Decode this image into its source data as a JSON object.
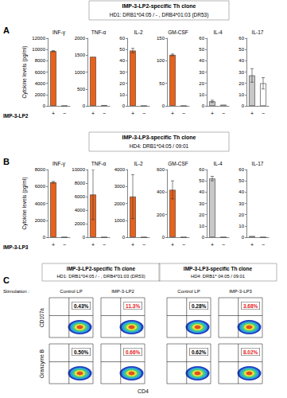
{
  "panels": [
    {
      "label": "A",
      "title": "IMP-3-LP2-specific Th clone",
      "subtitle": "HD1: DRB1*04:05 / - , DRB4*01:03 (DR53)",
      "y_label": "Cytokine levels (pg/ml)",
      "x_label": "IMP-3-LP2"
    },
    {
      "label": "B",
      "title": "IMP-3-LP3-specific Th clone",
      "subtitle": "HD4: DRB1*04:05 / 09:01",
      "y_label": "Cytokine levels (pg/ml)",
      "x_label": "IMP-3-LP3"
    }
  ],
  "chart_data": [
    {
      "type": "bar",
      "title": "INF-γ",
      "categories": [
        "+",
        "−"
      ],
      "values": [
        9700,
        0
      ],
      "errors": [
        100,
        0
      ],
      "colors": [
        "#e8611a",
        "#ffffff"
      ],
      "ylim": [
        0,
        12000
      ],
      "yticks": [
        0,
        2000,
        4000,
        6000,
        8000,
        10000,
        12000
      ],
      "grid": false
    },
    {
      "type": "bar",
      "title": "TNF-α",
      "categories": [
        "+",
        "−"
      ],
      "values": [
        1450,
        20
      ],
      "errors": [
        0,
        0
      ],
      "colors": [
        "#e8611a",
        "#ffffff"
      ],
      "ylim": [
        0,
        2000
      ],
      "yticks": [
        0,
        500,
        1000,
        1500,
        2000
      ],
      "grid": false
    },
    {
      "type": "bar",
      "title": "IL-2",
      "categories": [
        "+",
        "−"
      ],
      "values": [
        49,
        0
      ],
      "errors": [
        2,
        0
      ],
      "colors": [
        "#e8611a",
        "#ffffff"
      ],
      "ylim": [
        0,
        60
      ],
      "yticks": [
        0,
        10,
        20,
        30,
        40,
        50,
        60
      ],
      "grid": false
    },
    {
      "type": "bar",
      "title": "GM-CSF",
      "categories": [
        "+",
        "−"
      ],
      "values": [
        113,
        0
      ],
      "errors": [
        2,
        0
      ],
      "colors": [
        "#e8611a",
        "#ffffff"
      ],
      "ylim": [
        0,
        150
      ],
      "yticks": [
        0,
        50,
        100,
        150
      ],
      "grid": false
    },
    {
      "type": "bar",
      "title": "IL-4",
      "categories": [
        "+",
        "−"
      ],
      "values": [
        4,
        1
      ],
      "errors": [
        1,
        0
      ],
      "colors": [
        "#c8c8c8",
        "#ffffff"
      ],
      "ylim": [
        0,
        60
      ],
      "yticks": [
        0,
        10,
        20,
        30,
        40,
        50,
        60
      ],
      "grid": false
    },
    {
      "type": "bar",
      "title": "IL-17",
      "categories": [
        "+",
        "−"
      ],
      "values": [
        27,
        20
      ],
      "errors": [
        6,
        5
      ],
      "colors": [
        "#c8c8c8",
        "#ffffff"
      ],
      "ylim": [
        0,
        60
      ],
      "yticks": [
        0,
        10,
        20,
        30,
        40,
        50,
        60
      ],
      "grid": false
    },
    {
      "type": "bar",
      "title": "INF-γ",
      "categories": [
        "+",
        "−"
      ],
      "values": [
        6500,
        0
      ],
      "errors": [
        100,
        0
      ],
      "colors": [
        "#e8611a",
        "#ffffff"
      ],
      "ylim": [
        0,
        8000
      ],
      "yticks": [
        0,
        2000,
        4000,
        6000,
        8000
      ],
      "grid": false
    },
    {
      "type": "bar",
      "title": "TNF-α",
      "categories": [
        "+",
        "−"
      ],
      "values": [
        6300,
        0
      ],
      "errors": [
        3700,
        0
      ],
      "colors": [
        "#e8611a",
        "#ffffff"
      ],
      "ylim": [
        0,
        10000
      ],
      "yticks": [
        0,
        2000,
        4000,
        6000,
        8000,
        10000
      ],
      "grid": false
    },
    {
      "type": "bar",
      "title": "IL-2",
      "categories": [
        "+",
        "−"
      ],
      "values": [
        2400,
        0
      ],
      "errors": [
        1300,
        0
      ],
      "colors": [
        "#e8611a",
        "#ffffff"
      ],
      "ylim": [
        0,
        4000
      ],
      "yticks": [
        0,
        1000,
        2000,
        3000,
        4000
      ],
      "grid": false
    },
    {
      "type": "bar",
      "title": "GM-CSF",
      "categories": [
        "+",
        "−"
      ],
      "values": [
        420,
        0
      ],
      "errors": [
        80,
        0
      ],
      "colors": [
        "#e8611a",
        "#ffffff"
      ],
      "ylim": [
        0,
        600
      ],
      "yticks": [
        0,
        200,
        400,
        600
      ],
      "grid": false
    },
    {
      "type": "bar",
      "title": "IL-4",
      "categories": [
        "+",
        "−"
      ],
      "values": [
        52,
        0
      ],
      "errors": [
        2,
        0
      ],
      "colors": [
        "#c8c8c8",
        "#ffffff"
      ],
      "ylim": [
        0,
        60
      ],
      "yticks": [
        0,
        10,
        20,
        30,
        40,
        50,
        60
      ],
      "grid": false
    },
    {
      "type": "bar",
      "title": "IL-17",
      "categories": [
        "+",
        "−"
      ],
      "values": [
        1,
        0
      ],
      "errors": [
        0,
        0
      ],
      "colors": [
        "#c8c8c8",
        "#ffffff"
      ],
      "ylim": [
        0,
        60
      ],
      "yticks": [
        0,
        10,
        20,
        30,
        40,
        50,
        60
      ],
      "grid": false
    }
  ],
  "flow": {
    "label": "C",
    "stimulation_label": "Stimulation :",
    "x_label": "CD4",
    "groups": [
      {
        "title": "IMP-3-LP2-specific Th clone",
        "subtitle": "HD1: DRB1*04:05 / - , DRB4*01:03 (DR53)",
        "columns": [
          "Control LP",
          "IMP-3-LP2"
        ]
      },
      {
        "title": "IMP-3-LP3-specific Th clone",
        "subtitle": "HD4: DRB1* 04:05 / 09:01",
        "columns": [
          "Control LP",
          "IMP-3-LP3"
        ]
      }
    ],
    "rows": [
      {
        "label": "CD107a",
        "percentages": [
          "0.43%",
          "11.3%",
          "0.28%",
          "3.68%"
        ],
        "colors": [
          "#000000",
          "#e8221c",
          "#000000",
          "#e8221c"
        ]
      },
      {
        "label": "Granzyme B",
        "percentages": [
          "0.50%",
          "0.66%",
          "0.62%",
          "8.02%"
        ],
        "colors": [
          "#000000",
          "#e8221c",
          "#000000",
          "#e8221c"
        ]
      }
    ]
  }
}
